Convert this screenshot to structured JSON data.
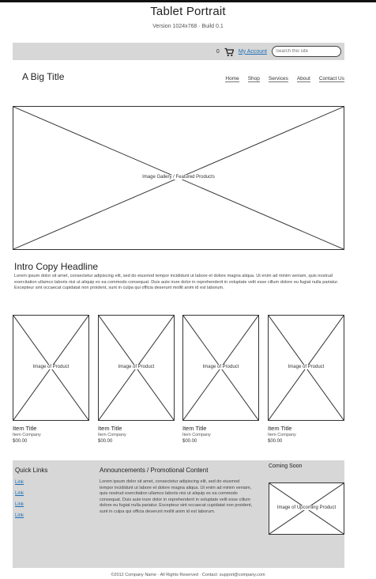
{
  "header": {
    "title": "Tablet Portrait",
    "subtitle": "Version 1024x768 · Build 0.1"
  },
  "utility": {
    "cart_count": "0",
    "link_label": "My Account",
    "search_placeholder": "Search this site"
  },
  "site": {
    "title": "A Big Title",
    "nav": [
      "Home",
      "Shop",
      "Services",
      "About",
      "Contact Us"
    ]
  },
  "hero": {
    "label": "Image Gallery / Featured Products"
  },
  "intro": {
    "headline": "Intro Copy Headline",
    "body": "Lorem ipsum dolor sit amet, consectetur adipiscing elit, sed do eiusmod tempor incididunt ut labore et dolore magna aliqua. Ut enim ad minim veniam, quis nostrud exercitation ullamco laboris nisi ut aliquip ex ea commodo consequat. Duis aute irure dolor in reprehenderit in voluptate velit esse cillum dolore eu fugiat nulla pariatur. Excepteur sint occaecat cupidatat non proident, sunt in culpa qui officia deserunt mollit anim id est laborum."
  },
  "products": [
    {
      "image_label": "Image of Product",
      "title": "Item Title",
      "company": "Item Company",
      "price": "$00.00"
    },
    {
      "image_label": "Image of Product",
      "title": "Item Title",
      "company": "Item Company",
      "price": "$00.00"
    },
    {
      "image_label": "Image of Product",
      "title": "Item Title",
      "company": "Item Company",
      "price": "$00.00"
    },
    {
      "image_label": "Image of Product",
      "title": "Item Title",
      "company": "Item Company",
      "price": "$00.00"
    }
  ],
  "footer": {
    "quick_links_title": "Quick Links",
    "quick_links": [
      "Link",
      "Link",
      "Link",
      "Link"
    ],
    "announcements_title": "Announcements / Promotional Content",
    "announcements_body": "Lorem ipsum dolor sit amet, consectetur adipiscing elit, sed do eiusmod tempor incididunt ut labore et dolore magna aliqua. Ut enim ad minim veniam, quis nostrud exercitation ullamco laboris nisi ut aliquip ex ea commodo consequat. Duis aute irure dolor in reprehenderit in voluptate velit esse cillum dolore eu fugiat nulla pariatur. Excepteur sint occaecat cupidatat non proident, sunt in culpa qui officia deserunt mollit anim id est laborum.",
    "coming_soon_title": "Coming Soon",
    "coming_soon_label": "Image of Upcoming Product",
    "copyright": "©2012 Company Name · All Rights Reserved · Contact: support@company.com"
  }
}
